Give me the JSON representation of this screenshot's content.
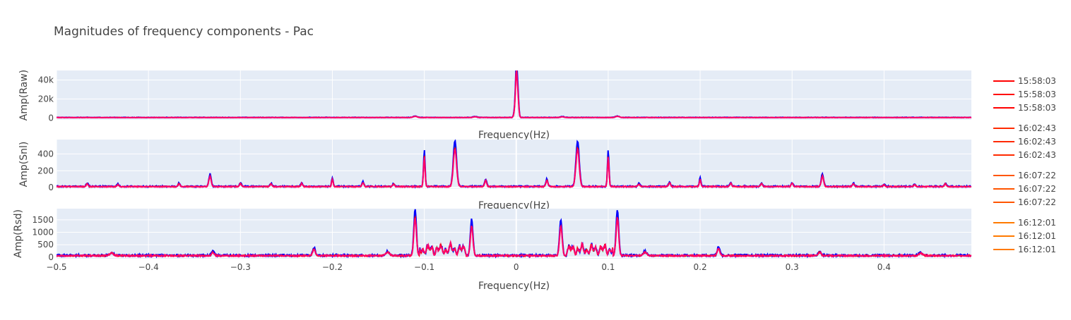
{
  "chart_data": {
    "type": "line",
    "title": "Magnitudes of frequency components - Pac",
    "x_tick_labels": [
      "−0.5",
      "−0.4",
      "−0.3",
      "−0.2",
      "−0.1",
      "0",
      "0.1",
      "0.2",
      "0.3",
      "0.4"
    ],
    "x_ticks": [
      -0.5,
      -0.4,
      -0.3,
      -0.2,
      -0.1,
      0,
      0.1,
      0.2,
      0.3,
      0.4
    ],
    "xlim": [
      -0.5,
      0.495
    ],
    "grid": true,
    "legend_placement": "right",
    "legend": {
      "groups": [
        {
          "label": "15:58:03",
          "count": 3,
          "color": "#ff0000"
        },
        {
          "label": "16:02:43",
          "count": 3,
          "color": "#ff2a00"
        },
        {
          "label": "16:07:22",
          "count": 3,
          "color": "#ff5500"
        },
        {
          "label": "16:12:01",
          "count": 3,
          "color": "#ff7a00"
        }
      ]
    },
    "trace_colors": {
      "blue": "#0000ff",
      "red": "#ff0000",
      "magenta": "#ff0066",
      "green": "#22bb22"
    },
    "subplots": [
      {
        "ylabel": "Amp(Raw)",
        "xlabel": "Frequency(Hz)",
        "ylim": [
          -2000,
          50000
        ],
        "y_ticks": [
          0,
          20000,
          40000
        ],
        "y_tick_labels": [
          "0",
          "20k",
          "40k"
        ],
        "baseline": 400,
        "features": [
          {
            "f": 0,
            "a": 46000,
            "w": 0.0012
          },
          {
            "f": 0.0015,
            "a": 30000,
            "w": 0.0015
          },
          {
            "f": -0.0015,
            "a": 9000,
            "w": 0.0015
          },
          {
            "f": -0.11,
            "a": 1500,
            "w": 0.003
          },
          {
            "f": -0.045,
            "a": 1000,
            "w": 0.003
          },
          {
            "f": 0.05,
            "a": 900,
            "w": 0.003
          },
          {
            "f": 0.11,
            "a": 1500,
            "w": 0.003
          }
        ]
      },
      {
        "ylabel": "Amp(Snl)",
        "xlabel": "Frequency(Hz)",
        "ylim": [
          -15,
          570
        ],
        "y_ticks": [
          0,
          200,
          400
        ],
        "y_tick_labels": [
          "0",
          "200",
          "400"
        ],
        "baseline": 12,
        "features": [
          {
            "f": -0.0667,
            "a": 545,
            "w": 0.0025
          },
          {
            "f": 0.0667,
            "a": 545,
            "w": 0.0025
          },
          {
            "f": -0.1,
            "a": 430,
            "w": 0.0012
          },
          {
            "f": 0.1,
            "a": 430,
            "w": 0.0012
          },
          {
            "f": -0.333,
            "a": 150,
            "w": 0.0018
          },
          {
            "f": 0.333,
            "a": 150,
            "w": 0.0018
          },
          {
            "f": -0.2,
            "a": 105,
            "w": 0.0012
          },
          {
            "f": 0.2,
            "a": 105,
            "w": 0.0012
          },
          {
            "f": -0.0333,
            "a": 90,
            "w": 0.0015
          },
          {
            "f": 0.0333,
            "a": 90,
            "w": 0.0015
          },
          {
            "f": -0.4667,
            "a": 40,
            "w": 0.0015
          },
          {
            "f": -0.4333,
            "a": 30,
            "w": 0.0015
          },
          {
            "f": -0.3667,
            "a": 40,
            "w": 0.0015
          },
          {
            "f": -0.3,
            "a": 45,
            "w": 0.0015
          },
          {
            "f": -0.2667,
            "a": 40,
            "w": 0.0015
          },
          {
            "f": -0.2333,
            "a": 45,
            "w": 0.0015
          },
          {
            "f": -0.1667,
            "a": 55,
            "w": 0.0015
          },
          {
            "f": -0.1333,
            "a": 35,
            "w": 0.0015
          },
          {
            "f": 0.1333,
            "a": 35,
            "w": 0.0015
          },
          {
            "f": 0.1667,
            "a": 55,
            "w": 0.0015
          },
          {
            "f": 0.2333,
            "a": 45,
            "w": 0.0015
          },
          {
            "f": 0.2667,
            "a": 40,
            "w": 0.0015
          },
          {
            "f": 0.3,
            "a": 45,
            "w": 0.0015
          },
          {
            "f": 0.3667,
            "a": 40,
            "w": 0.0015
          },
          {
            "f": 0.4,
            "a": 25,
            "w": 0.0015
          },
          {
            "f": 0.4333,
            "a": 30,
            "w": 0.0015
          },
          {
            "f": 0.4667,
            "a": 40,
            "w": 0.0015
          }
        ]
      },
      {
        "ylabel": "Amp(Rsd)",
        "xlabel": "Frequency(Hz)",
        "ylim": [
          -60,
          1950
        ],
        "y_ticks": [
          0,
          500,
          1000,
          1500
        ],
        "y_tick_labels": [
          "0",
          "500",
          "1000",
          "1500"
        ],
        "baseline": 60,
        "bands": [
          {
            "from": -0.105,
            "to": -0.055,
            "a": 520
          },
          {
            "from": 0.055,
            "to": 0.105,
            "a": 520
          }
        ],
        "features": [
          {
            "f": -0.11,
            "a": 1850,
            "w": 0.002
          },
          {
            "f": 0.11,
            "a": 1850,
            "w": 0.002
          },
          {
            "f": -0.0485,
            "a": 1450,
            "w": 0.002
          },
          {
            "f": 0.0485,
            "a": 1450,
            "w": 0.002
          },
          {
            "f": -0.22,
            "a": 320,
            "w": 0.002
          },
          {
            "f": 0.22,
            "a": 340,
            "w": 0.002
          },
          {
            "f": -0.33,
            "a": 170,
            "w": 0.002
          },
          {
            "f": 0.33,
            "a": 170,
            "w": 0.002
          },
          {
            "f": -0.44,
            "a": 120,
            "w": 0.003
          },
          {
            "f": 0.44,
            "a": 120,
            "w": 0.003
          },
          {
            "f": -0.14,
            "a": 160,
            "w": 0.003
          },
          {
            "f": 0.14,
            "a": 160,
            "w": 0.003
          }
        ]
      }
    ]
  }
}
